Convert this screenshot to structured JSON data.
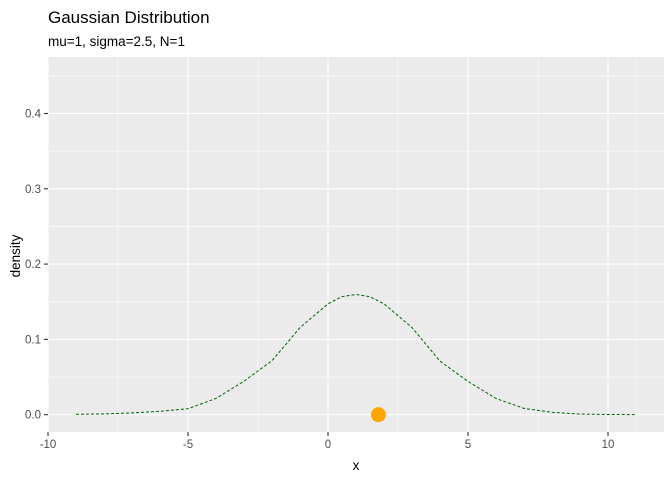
{
  "chart_data": {
    "type": "line",
    "title": "Gaussian Distribution",
    "subtitle": "mu=1, sigma=2.5, N=1",
    "xlabel": "x",
    "ylabel": "density",
    "xlim": [
      -10,
      12
    ],
    "ylim": [
      -0.023,
      0.475
    ],
    "x_ticks": [
      -10,
      -5,
      0,
      5,
      10
    ],
    "y_ticks": [
      0.0,
      0.1,
      0.2,
      0.3,
      0.4
    ],
    "x_tick_labels": [
      "-10",
      "-5",
      "0",
      "5",
      "10"
    ],
    "y_tick_labels": [
      "0.0",
      "0.1",
      "0.2",
      "0.3",
      "0.4"
    ],
    "grid": true,
    "legend": "none",
    "series": [
      {
        "style": "dashed",
        "color": "#006400",
        "x": [
          -9,
          -8,
          -7,
          -6,
          -5,
          -4,
          -3,
          -2,
          -1,
          0,
          0.5,
          1,
          1.5,
          2,
          3,
          4,
          5,
          6,
          7,
          8,
          9,
          10,
          11
        ],
        "y": [
          0.0005,
          0.0011,
          0.0024,
          0.0045,
          0.0079,
          0.0216,
          0.0444,
          0.0717,
          0.1157,
          0.1473,
          0.1568,
          0.1596,
          0.1567,
          0.1472,
          0.1157,
          0.0711,
          0.0442,
          0.0215,
          0.0084,
          0.0032,
          0.0008,
          0.0003,
          0.0001
        ]
      }
    ],
    "points": [
      {
        "x": 1.8,
        "y": 0.0,
        "color": "#FFA500"
      }
    ]
  }
}
